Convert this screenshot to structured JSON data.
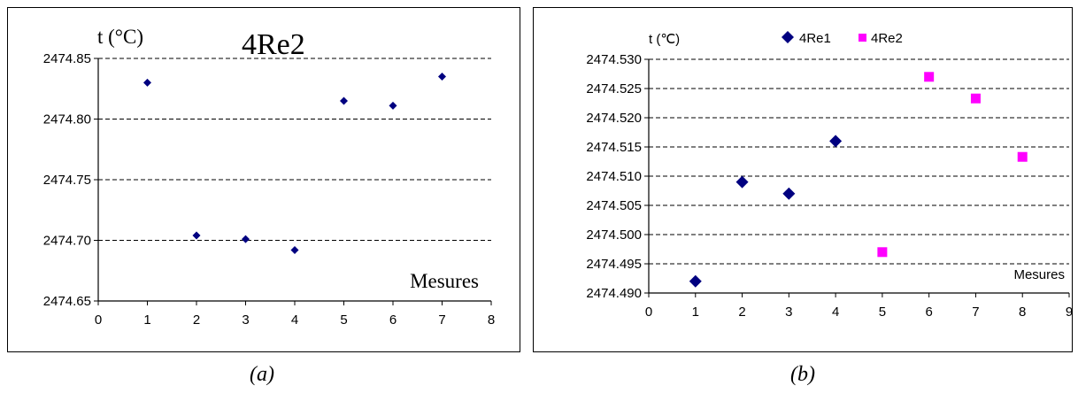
{
  "chart_data": [
    {
      "type": "scatter",
      "title": "4Re2",
      "ylabel": "t (°C)",
      "xlabel": "Mesures",
      "xlim": [
        0,
        8
      ],
      "ylim": [
        2474.65,
        2474.85
      ],
      "x_ticks": [
        0,
        1,
        2,
        3,
        4,
        5,
        6,
        7,
        8
      ],
      "y_ticks": [
        "2474.65",
        "2474.70",
        "2474.75",
        "2474.80",
        "2474.85"
      ],
      "grid": "horizontal dashed",
      "series": [
        {
          "x": [
            1,
            2,
            3,
            4,
            5,
            6,
            7
          ],
          "y": [
            2474.83,
            2474.704,
            2474.701,
            2474.692,
            2474.815,
            2474.811,
            2474.835
          ],
          "color": "#000080",
          "marker": "diamond"
        }
      ],
      "caption": "(a)"
    },
    {
      "type": "scatter",
      "ylabel": "t (℃)",
      "xlabel": "Mesures",
      "xlim": [
        0,
        9
      ],
      "ylim": [
        2474.49,
        2474.53
      ],
      "x_ticks": [
        0,
        1,
        2,
        3,
        4,
        5,
        6,
        7,
        8,
        9
      ],
      "y_ticks": [
        "2474.490",
        "2474.495",
        "2474.500",
        "2474.505",
        "2474.510",
        "2474.515",
        "2474.520",
        "2474.525",
        "2474.530"
      ],
      "grid": "horizontal dashed",
      "legend": "top",
      "series": [
        {
          "name": "4Re1",
          "x": [
            1,
            2,
            3,
            4
          ],
          "y": [
            2474.492,
            2474.509,
            2474.507,
            2474.516
          ],
          "color": "#000080",
          "marker": "diamond"
        },
        {
          "name": "4Re2",
          "x": [
            5,
            6,
            7,
            8
          ],
          "y": [
            2474.497,
            2474.527,
            2474.5233,
            2474.5133
          ],
          "color": "#ff00ff",
          "marker": "square"
        }
      ],
      "caption": "(b)"
    }
  ]
}
